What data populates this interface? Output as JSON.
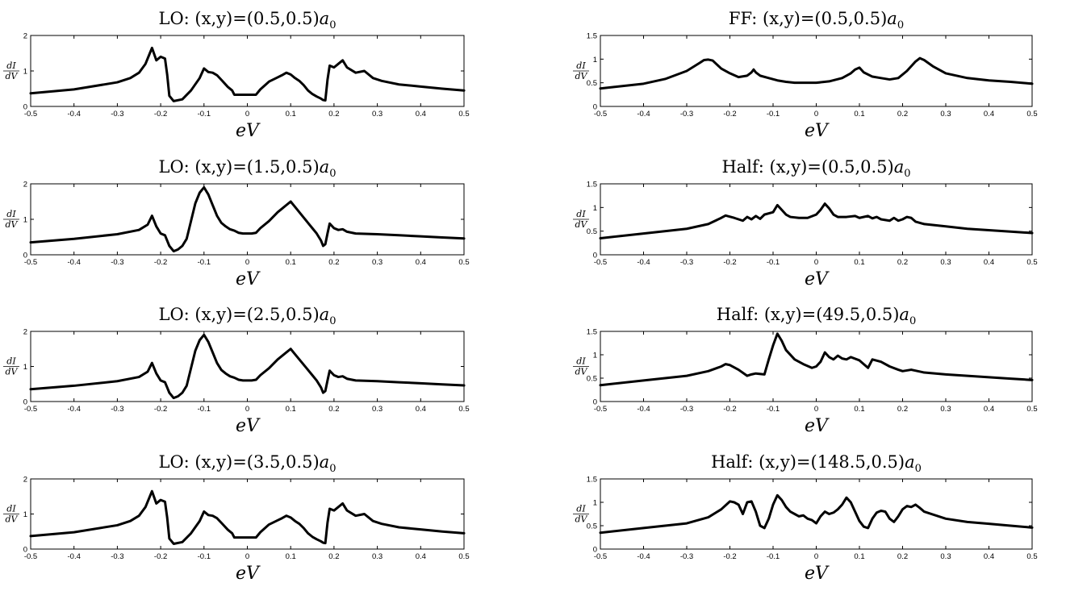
{
  "chart_data": [
    {
      "type": "line",
      "title": "LO: (x,y)=(0.5,0.5)a0",
      "title_main": "LO: (x,y)=(0.5,0.5)",
      "title_sym": "a",
      "title_sub": "0",
      "xlabel": "eV",
      "ylabel_num": "dI",
      "ylabel_den": "dV",
      "xlim": [
        -0.5,
        0.5
      ],
      "ylim": [
        0,
        2
      ],
      "xticks": [
        "-0.5",
        "-0.4",
        "-0.3",
        "-0.2",
        "-0.1",
        "0",
        "0.1",
        "0.2",
        "0.3",
        "0.4",
        "0.5"
      ],
      "yticks": [
        "0",
        "1",
        "2"
      ],
      "x": [
        -0.5,
        -0.4,
        -0.3,
        -0.27,
        -0.25,
        -0.235,
        -0.225,
        -0.22,
        -0.21,
        -0.2,
        -0.19,
        -0.185,
        -0.18,
        -0.17,
        -0.15,
        -0.13,
        -0.11,
        -0.1,
        -0.09,
        -0.08,
        -0.07,
        -0.06,
        -0.045,
        -0.035,
        -0.03,
        -0.02,
        -0.01,
        0,
        0.01,
        0.02,
        0.03,
        0.05,
        0.07,
        0.08,
        0.09,
        0.1,
        0.11,
        0.12,
        0.13,
        0.14,
        0.15,
        0.16,
        0.17,
        0.175,
        0.18,
        0.185,
        0.19,
        0.2,
        0.21,
        0.22,
        0.23,
        0.25,
        0.27,
        0.29,
        0.31,
        0.35,
        0.4,
        0.45,
        0.5
      ],
      "y": [
        0.37,
        0.48,
        0.68,
        0.8,
        0.95,
        1.2,
        1.5,
        1.65,
        1.3,
        1.4,
        1.35,
        0.9,
        0.3,
        0.15,
        0.2,
        0.45,
        0.8,
        1.07,
        0.97,
        0.95,
        0.88,
        0.75,
        0.55,
        0.45,
        0.33,
        0.33,
        0.33,
        0.33,
        0.33,
        0.33,
        0.48,
        0.7,
        0.82,
        0.88,
        0.95,
        0.9,
        0.8,
        0.72,
        0.6,
        0.45,
        0.35,
        0.28,
        0.22,
        0.18,
        0.17,
        0.75,
        1.15,
        1.1,
        1.2,
        1.3,
        1.1,
        0.95,
        1.0,
        0.8,
        0.72,
        0.62,
        0.56,
        0.5,
        0.45
      ]
    },
    {
      "type": "line",
      "title": "FF: (x,y)=(0.5,0.5)a0",
      "title_main": "FF: (x,y)=(0.5,0.5)",
      "title_sym": "a",
      "title_sub": "0",
      "xlabel": "eV",
      "ylabel_num": "dI",
      "ylabel_den": "dV",
      "xlim": [
        -0.5,
        0.5
      ],
      "ylim": [
        0,
        1.5
      ],
      "xticks": [
        "-0.5",
        "-0.4",
        "-0.3",
        "-0.2",
        "-0.1",
        "0",
        "0.1",
        "0.2",
        "0.3",
        "0.4",
        "0.5"
      ],
      "yticks": [
        "0",
        "0.5",
        "1",
        "1.5"
      ],
      "x": [
        -0.5,
        -0.4,
        -0.35,
        -0.3,
        -0.27,
        -0.26,
        -0.25,
        -0.24,
        -0.22,
        -0.2,
        -0.18,
        -0.16,
        -0.15,
        -0.145,
        -0.14,
        -0.13,
        -0.11,
        -0.09,
        -0.07,
        -0.05,
        -0.02,
        0,
        0.03,
        0.06,
        0.08,
        0.09,
        0.1,
        0.11,
        0.13,
        0.15,
        0.17,
        0.19,
        0.21,
        0.22,
        0.23,
        0.24,
        0.25,
        0.27,
        0.3,
        0.35,
        0.4,
        0.45,
        0.5
      ],
      "y": [
        0.38,
        0.48,
        0.58,
        0.75,
        0.92,
        0.98,
        0.99,
        0.97,
        0.8,
        0.7,
        0.62,
        0.65,
        0.72,
        0.78,
        0.72,
        0.65,
        0.6,
        0.55,
        0.52,
        0.5,
        0.5,
        0.5,
        0.53,
        0.6,
        0.7,
        0.78,
        0.82,
        0.72,
        0.63,
        0.6,
        0.57,
        0.6,
        0.75,
        0.85,
        0.95,
        1.02,
        0.98,
        0.85,
        0.7,
        0.6,
        0.55,
        0.52,
        0.48
      ]
    },
    {
      "type": "line",
      "title": "LO: (x,y)=(1.5,0.5)a0",
      "title_main": "LO: (x,y)=(1.5,0.5)",
      "title_sym": "a",
      "title_sub": "0",
      "xlabel": "eV",
      "ylabel_num": "dI",
      "ylabel_den": "dV",
      "xlim": [
        -0.5,
        0.5
      ],
      "ylim": [
        0,
        2
      ],
      "xticks": [
        "-0.5",
        "-0.4",
        "-0.3",
        "-0.2",
        "-0.1",
        "0",
        "0.1",
        "0.2",
        "0.3",
        "0.4",
        "0.5"
      ],
      "yticks": [
        "0",
        "1",
        "2"
      ],
      "x": [
        -0.5,
        -0.4,
        -0.3,
        -0.25,
        -0.23,
        -0.22,
        -0.21,
        -0.2,
        -0.19,
        -0.185,
        -0.18,
        -0.17,
        -0.16,
        -0.15,
        -0.14,
        -0.13,
        -0.12,
        -0.11,
        -0.1,
        -0.09,
        -0.08,
        -0.07,
        -0.06,
        -0.05,
        -0.04,
        -0.03,
        -0.02,
        -0.01,
        0,
        0.01,
        0.02,
        0.03,
        0.05,
        0.07,
        0.08,
        0.09,
        0.1,
        0.11,
        0.12,
        0.13,
        0.14,
        0.15,
        0.16,
        0.17,
        0.175,
        0.18,
        0.185,
        0.19,
        0.2,
        0.21,
        0.22,
        0.23,
        0.25,
        0.3,
        0.35,
        0.4,
        0.45,
        0.5
      ],
      "y": [
        0.35,
        0.45,
        0.58,
        0.7,
        0.85,
        1.1,
        0.8,
        0.6,
        0.55,
        0.4,
        0.25,
        0.1,
        0.15,
        0.25,
        0.45,
        0.95,
        1.45,
        1.75,
        1.9,
        1.7,
        1.4,
        1.1,
        0.9,
        0.8,
        0.72,
        0.68,
        0.62,
        0.6,
        0.6,
        0.6,
        0.62,
        0.75,
        0.95,
        1.2,
        1.3,
        1.4,
        1.5,
        1.35,
        1.2,
        1.05,
        0.9,
        0.75,
        0.6,
        0.4,
        0.25,
        0.3,
        0.6,
        0.88,
        0.75,
        0.7,
        0.72,
        0.65,
        0.6,
        0.58,
        0.55,
        0.52,
        0.49,
        0.46
      ]
    },
    {
      "type": "line",
      "title": "Half: (x,y)=(0.5,0.5)a0",
      "title_main": "Half: (x,y)=(0.5,0.5)",
      "title_sym": "a",
      "title_sub": "0",
      "xlabel": "eV",
      "ylabel_num": "dI",
      "ylabel_den": "dV",
      "xlim": [
        -0.5,
        0.5
      ],
      "ylim": [
        0,
        1.5
      ],
      "xticks": [
        "-0.5",
        "-0.4",
        "-0.3",
        "-0.2",
        "-0.1",
        "0",
        "0.1",
        "0.2",
        "0.3",
        "0.4",
        "0.5"
      ],
      "yticks": [
        "0",
        "0.5",
        "1",
        "1.5"
      ],
      "x": [
        -0.5,
        -0.4,
        -0.3,
        -0.25,
        -0.22,
        -0.21,
        -0.19,
        -0.17,
        -0.16,
        -0.15,
        -0.14,
        -0.13,
        -0.12,
        -0.1,
        -0.09,
        -0.08,
        -0.07,
        -0.06,
        -0.04,
        -0.02,
        0,
        0.01,
        0.02,
        0.03,
        0.04,
        0.05,
        0.07,
        0.09,
        0.1,
        0.12,
        0.13,
        0.14,
        0.15,
        0.17,
        0.18,
        0.19,
        0.2,
        0.21,
        0.22,
        0.23,
        0.25,
        0.3,
        0.35,
        0.4,
        0.45,
        0.5
      ],
      "y": [
        0.35,
        0.45,
        0.55,
        0.65,
        0.78,
        0.83,
        0.78,
        0.72,
        0.8,
        0.75,
        0.82,
        0.76,
        0.85,
        0.9,
        1.05,
        0.95,
        0.85,
        0.8,
        0.78,
        0.78,
        0.85,
        0.95,
        1.08,
        0.98,
        0.85,
        0.8,
        0.8,
        0.82,
        0.78,
        0.82,
        0.77,
        0.8,
        0.75,
        0.72,
        0.78,
        0.72,
        0.75,
        0.8,
        0.78,
        0.7,
        0.65,
        0.6,
        0.55,
        0.52,
        0.49,
        0.46
      ]
    },
    {
      "type": "line",
      "title": "LO: (x,y)=(2.5,0.5)a0",
      "title_main": "LO: (x,y)=(2.5,0.5)",
      "title_sym": "a",
      "title_sub": "0",
      "xlabel": "eV",
      "ylabel_num": "dI",
      "ylabel_den": "dV",
      "xlim": [
        -0.5,
        0.5
      ],
      "ylim": [
        0,
        2
      ],
      "xticks": [
        "-0.5",
        "-0.4",
        "-0.3",
        "-0.2",
        "-0.1",
        "0",
        "0.1",
        "0.2",
        "0.3",
        "0.4",
        "0.5"
      ],
      "yticks": [
        "0",
        "1",
        "2"
      ],
      "x": [
        -0.5,
        -0.4,
        -0.3,
        -0.25,
        -0.23,
        -0.22,
        -0.21,
        -0.2,
        -0.19,
        -0.185,
        -0.18,
        -0.17,
        -0.16,
        -0.15,
        -0.14,
        -0.13,
        -0.12,
        -0.11,
        -0.1,
        -0.09,
        -0.08,
        -0.07,
        -0.06,
        -0.05,
        -0.04,
        -0.03,
        -0.02,
        -0.01,
        0,
        0.01,
        0.02,
        0.03,
        0.05,
        0.07,
        0.08,
        0.09,
        0.1,
        0.11,
        0.12,
        0.13,
        0.14,
        0.15,
        0.16,
        0.17,
        0.175,
        0.18,
        0.185,
        0.19,
        0.2,
        0.21,
        0.22,
        0.23,
        0.25,
        0.3,
        0.35,
        0.4,
        0.45,
        0.5
      ],
      "y": [
        0.35,
        0.45,
        0.58,
        0.7,
        0.85,
        1.1,
        0.8,
        0.6,
        0.55,
        0.4,
        0.25,
        0.1,
        0.15,
        0.25,
        0.45,
        0.95,
        1.45,
        1.75,
        1.9,
        1.7,
        1.4,
        1.1,
        0.9,
        0.8,
        0.72,
        0.68,
        0.62,
        0.6,
        0.6,
        0.6,
        0.62,
        0.75,
        0.95,
        1.2,
        1.3,
        1.4,
        1.5,
        1.35,
        1.2,
        1.05,
        0.9,
        0.75,
        0.6,
        0.4,
        0.25,
        0.3,
        0.6,
        0.88,
        0.75,
        0.7,
        0.72,
        0.65,
        0.6,
        0.58,
        0.55,
        0.52,
        0.49,
        0.46
      ]
    },
    {
      "type": "line",
      "title": "Half: (x,y)=(49.5,0.5)a0",
      "title_main": "Half: (x,y)=(49.5,0.5)",
      "title_sym": "a",
      "title_sub": "0",
      "xlabel": "eV",
      "ylabel_num": "dI",
      "ylabel_den": "dV",
      "xlim": [
        -0.5,
        0.5
      ],
      "ylim": [
        0,
        1.5
      ],
      "xticks": [
        "-0.5",
        "-0.4",
        "-0.3",
        "-0.2",
        "-0.1",
        "0",
        "0.1",
        "0.2",
        "0.3",
        "0.4",
        "0.5"
      ],
      "yticks": [
        "0",
        "0.5",
        "1",
        "1.5"
      ],
      "x": [
        -0.5,
        -0.4,
        -0.3,
        -0.25,
        -0.22,
        -0.21,
        -0.2,
        -0.18,
        -0.16,
        -0.15,
        -0.14,
        -0.12,
        -0.11,
        -0.1,
        -0.09,
        -0.08,
        -0.07,
        -0.05,
        -0.03,
        -0.01,
        0,
        0.01,
        0.02,
        0.03,
        0.04,
        0.05,
        0.06,
        0.07,
        0.08,
        0.1,
        0.11,
        0.12,
        0.13,
        0.15,
        0.17,
        0.19,
        0.2,
        0.22,
        0.25,
        0.3,
        0.35,
        0.4,
        0.45,
        0.5
      ],
      "y": [
        0.35,
        0.45,
        0.55,
        0.65,
        0.75,
        0.8,
        0.78,
        0.68,
        0.55,
        0.58,
        0.6,
        0.58,
        0.9,
        1.2,
        1.45,
        1.3,
        1.1,
        0.9,
        0.8,
        0.72,
        0.75,
        0.85,
        1.05,
        0.95,
        0.9,
        0.98,
        0.92,
        0.9,
        0.95,
        0.88,
        0.8,
        0.72,
        0.9,
        0.85,
        0.75,
        0.68,
        0.65,
        0.68,
        0.62,
        0.58,
        0.55,
        0.52,
        0.49,
        0.46
      ]
    },
    {
      "type": "line",
      "title": "LO: (x,y)=(3.5,0.5)a0",
      "title_main": "LO: (x,y)=(3.5,0.5)",
      "title_sym": "a",
      "title_sub": "0",
      "xlabel": "eV",
      "ylabel_num": "dI",
      "ylabel_den": "dV",
      "xlim": [
        -0.5,
        0.5
      ],
      "ylim": [
        0,
        2
      ],
      "xticks": [
        "-0.5",
        "-0.4",
        "-0.3",
        "-0.2",
        "-0.1",
        "0",
        "0.1",
        "0.2",
        "0.3",
        "0.4",
        "0.5"
      ],
      "yticks": [
        "0",
        "1",
        "2"
      ],
      "x": [
        -0.5,
        -0.4,
        -0.3,
        -0.27,
        -0.25,
        -0.235,
        -0.225,
        -0.22,
        -0.21,
        -0.2,
        -0.19,
        -0.185,
        -0.18,
        -0.17,
        -0.15,
        -0.13,
        -0.11,
        -0.1,
        -0.09,
        -0.08,
        -0.07,
        -0.06,
        -0.045,
        -0.035,
        -0.03,
        -0.02,
        -0.01,
        0,
        0.01,
        0.02,
        0.03,
        0.05,
        0.07,
        0.08,
        0.09,
        0.1,
        0.11,
        0.12,
        0.13,
        0.14,
        0.15,
        0.16,
        0.17,
        0.175,
        0.18,
        0.185,
        0.19,
        0.2,
        0.21,
        0.22,
        0.23,
        0.25,
        0.27,
        0.29,
        0.31,
        0.35,
        0.4,
        0.45,
        0.5
      ],
      "y": [
        0.37,
        0.48,
        0.68,
        0.8,
        0.95,
        1.2,
        1.5,
        1.65,
        1.3,
        1.4,
        1.35,
        0.9,
        0.3,
        0.15,
        0.2,
        0.45,
        0.8,
        1.07,
        0.97,
        0.95,
        0.88,
        0.75,
        0.55,
        0.45,
        0.33,
        0.33,
        0.33,
        0.33,
        0.33,
        0.33,
        0.48,
        0.7,
        0.82,
        0.88,
        0.95,
        0.9,
        0.8,
        0.72,
        0.6,
        0.45,
        0.35,
        0.28,
        0.22,
        0.18,
        0.17,
        0.75,
        1.15,
        1.1,
        1.2,
        1.3,
        1.1,
        0.95,
        1.0,
        0.8,
        0.72,
        0.62,
        0.56,
        0.5,
        0.45
      ]
    },
    {
      "type": "line",
      "title": "Half: (x,y)=(148.5,0.5)a0",
      "title_main": "Half: (x,y)=(148.5,0.5)",
      "title_sym": "a",
      "title_sub": "0",
      "xlabel": "eV",
      "ylabel_num": "dI",
      "ylabel_den": "dV",
      "xlim": [
        -0.5,
        0.5
      ],
      "ylim": [
        0,
        1.5
      ],
      "xticks": [
        "-0.5",
        "-0.4",
        "-0.3",
        "-0.2",
        "-0.1",
        "0",
        "0.1",
        "0.2",
        "0.3",
        "0.4",
        "0.5"
      ],
      "yticks": [
        "0",
        "0.5",
        "1",
        "1.5"
      ],
      "x": [
        -0.5,
        -0.4,
        -0.3,
        -0.25,
        -0.22,
        -0.2,
        -0.19,
        -0.18,
        -0.17,
        -0.16,
        -0.15,
        -0.14,
        -0.13,
        -0.12,
        -0.11,
        -0.1,
        -0.09,
        -0.08,
        -0.07,
        -0.06,
        -0.05,
        -0.04,
        -0.03,
        -0.02,
        -0.01,
        0,
        0.01,
        0.02,
        0.03,
        0.04,
        0.05,
        0.06,
        0.07,
        0.08,
        0.09,
        0.1,
        0.11,
        0.12,
        0.13,
        0.14,
        0.15,
        0.16,
        0.17,
        0.18,
        0.19,
        0.2,
        0.21,
        0.22,
        0.23,
        0.24,
        0.25,
        0.3,
        0.35,
        0.4,
        0.45,
        0.5
      ],
      "y": [
        0.35,
        0.45,
        0.55,
        0.68,
        0.85,
        1.02,
        1.0,
        0.95,
        0.75,
        1.0,
        1.02,
        0.8,
        0.5,
        0.45,
        0.65,
        0.95,
        1.15,
        1.05,
        0.9,
        0.8,
        0.75,
        0.7,
        0.72,
        0.65,
        0.62,
        0.55,
        0.7,
        0.8,
        0.75,
        0.78,
        0.85,
        0.95,
        1.1,
        1.0,
        0.8,
        0.6,
        0.48,
        0.45,
        0.65,
        0.78,
        0.82,
        0.8,
        0.65,
        0.58,
        0.7,
        0.85,
        0.92,
        0.9,
        0.95,
        0.88,
        0.8,
        0.65,
        0.58,
        0.54,
        0.5,
        0.46
      ]
    }
  ]
}
